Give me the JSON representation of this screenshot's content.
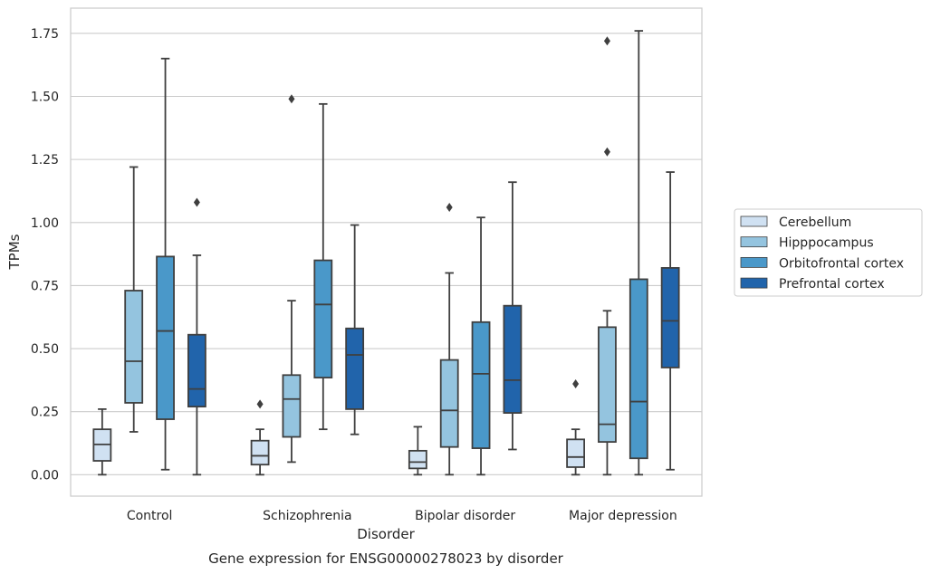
{
  "chart_data": {
    "type": "box",
    "caption": "Gene expression for ENSG00000278023 by disorder",
    "xlabel": "Disorder",
    "ylabel": "TPMs",
    "ylim": [
      -0.085,
      1.85
    ],
    "yticks": [
      0.0,
      0.25,
      0.5,
      0.75,
      1.0,
      1.25,
      1.5,
      1.75
    ],
    "ytick_labels": [
      "0.00",
      "0.25",
      "0.50",
      "0.75",
      "1.00",
      "1.25",
      "1.50",
      "1.75"
    ],
    "grid": "horizontal",
    "legend_position": "right",
    "categories": [
      "Control",
      "Schizophrenia",
      "Bipolar disorder",
      "Major depression"
    ],
    "series": [
      {
        "name": "Cerebellum",
        "color": "#d0e1f2",
        "boxes": [
          {
            "min": 0.0,
            "q1": 0.055,
            "median": 0.12,
            "q3": 0.18,
            "max": 0.26,
            "outliers": []
          },
          {
            "min": 0.0,
            "q1": 0.04,
            "median": 0.075,
            "q3": 0.135,
            "max": 0.18,
            "outliers": [
              0.28
            ]
          },
          {
            "min": 0.0,
            "q1": 0.025,
            "median": 0.05,
            "q3": 0.095,
            "max": 0.19,
            "outliers": []
          },
          {
            "min": 0.0,
            "q1": 0.03,
            "median": 0.07,
            "q3": 0.14,
            "max": 0.18,
            "outliers": [
              0.36
            ]
          }
        ]
      },
      {
        "name": "Hipppocampus",
        "color": "#94c4df",
        "boxes": [
          {
            "min": 0.17,
            "q1": 0.285,
            "median": 0.45,
            "q3": 0.73,
            "max": 1.22,
            "outliers": []
          },
          {
            "min": 0.05,
            "q1": 0.15,
            "median": 0.3,
            "q3": 0.395,
            "max": 0.69,
            "outliers": [
              1.49
            ]
          },
          {
            "min": 0.0,
            "q1": 0.11,
            "median": 0.255,
            "q3": 0.455,
            "max": 0.8,
            "outliers": [
              1.06
            ]
          },
          {
            "min": 0.0,
            "q1": 0.13,
            "median": 0.2,
            "q3": 0.585,
            "max": 0.65,
            "outliers": [
              1.28,
              1.72
            ]
          }
        ]
      },
      {
        "name": "Orbitofrontal cortex",
        "color": "#4a98c9",
        "boxes": [
          {
            "min": 0.02,
            "q1": 0.22,
            "median": 0.57,
            "q3": 0.865,
            "max": 1.65,
            "outliers": []
          },
          {
            "min": 0.18,
            "q1": 0.385,
            "median": 0.675,
            "q3": 0.85,
            "max": 1.47,
            "outliers": []
          },
          {
            "min": 0.0,
            "q1": 0.105,
            "median": 0.4,
            "q3": 0.605,
            "max": 1.02,
            "outliers": []
          },
          {
            "min": 0.0,
            "q1": 0.065,
            "median": 0.29,
            "q3": 0.775,
            "max": 1.76,
            "outliers": []
          }
        ]
      },
      {
        "name": "Prefrontal cortex",
        "color": "#2164ab",
        "boxes": [
          {
            "min": 0.0,
            "q1": 0.27,
            "median": 0.34,
            "q3": 0.555,
            "max": 0.87,
            "outliers": [
              1.08
            ]
          },
          {
            "min": 0.16,
            "q1": 0.26,
            "median": 0.475,
            "q3": 0.58,
            "max": 0.99,
            "outliers": []
          },
          {
            "min": 0.1,
            "q1": 0.245,
            "median": 0.375,
            "q3": 0.67,
            "max": 1.16,
            "outliers": []
          },
          {
            "min": 0.02,
            "q1": 0.425,
            "median": 0.61,
            "q3": 0.82,
            "max": 1.2,
            "outliers": []
          }
        ]
      }
    ]
  }
}
